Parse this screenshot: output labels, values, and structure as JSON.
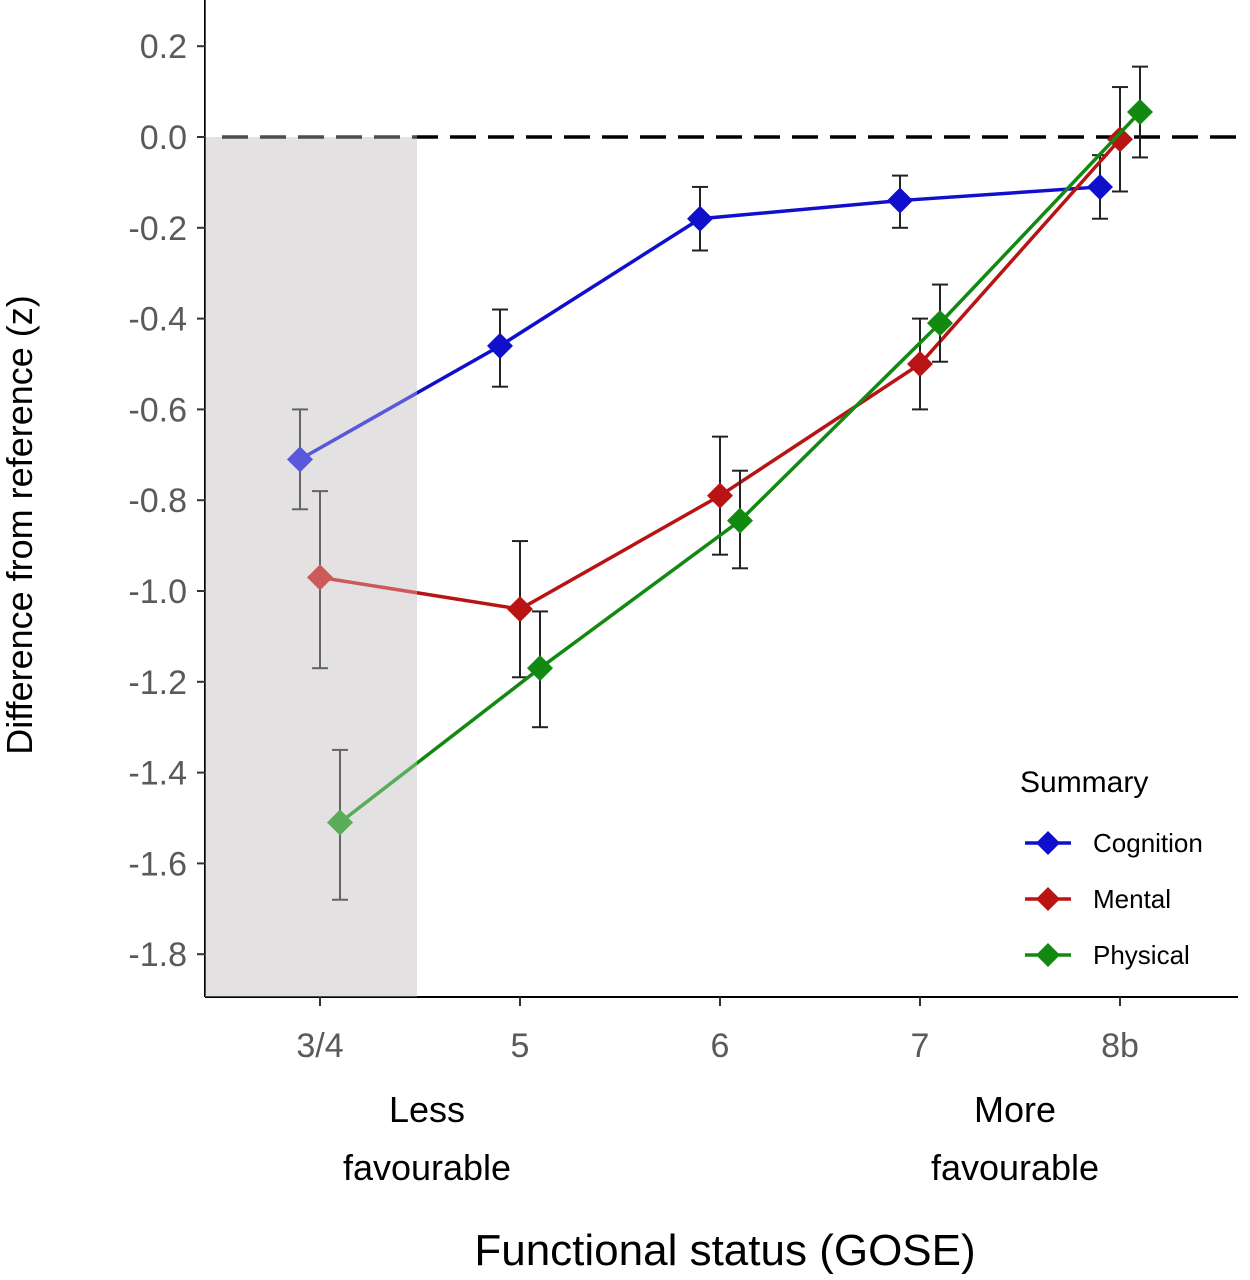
{
  "chart_data": {
    "type": "line",
    "xlabel": "Functional status (GOSE)",
    "ylabel": "Difference from reference (z)",
    "categories": [
      "3/4",
      "5",
      "6",
      "7",
      "8b"
    ],
    "ylim": [
      -1.9,
      0.3
    ],
    "yticks": [
      0.2,
      0.0,
      -0.2,
      -0.4,
      -0.6,
      -0.8,
      -1.0,
      -1.2,
      -1.4,
      -1.6,
      -1.8
    ],
    "ytick_labels": [
      "0.2",
      "0.0",
      "-0.2",
      "-0.4",
      "-0.6",
      "-0.8",
      "-1.0",
      "-1.2",
      "-1.4",
      "-1.6",
      "-1.8"
    ],
    "reference_line": 0.0,
    "shaded_category": "3/4",
    "annotations": {
      "left": [
        "Less",
        "favourable"
      ],
      "right": [
        "More",
        "favourable"
      ]
    },
    "legend": {
      "title": "Summary",
      "position": "bottom-right"
    },
    "series": [
      {
        "name": "Cognition",
        "color": "#1010cc",
        "values": [
          -0.71,
          -0.46,
          -0.18,
          -0.14,
          -0.11
        ],
        "err_low": [
          -0.82,
          -0.55,
          -0.25,
          -0.2,
          -0.18
        ],
        "err_high": [
          -0.6,
          -0.38,
          -0.11,
          -0.085,
          -0.04
        ]
      },
      {
        "name": "Mental",
        "color": "#b81414",
        "values": [
          -0.97,
          -1.04,
          -0.79,
          -0.5,
          -0.005
        ],
        "err_low": [
          -1.17,
          -1.19,
          -0.92,
          -0.6,
          -0.12
        ],
        "err_high": [
          -0.78,
          -0.89,
          -0.66,
          -0.4,
          0.11
        ]
      },
      {
        "name": "Physical",
        "color": "#128a12",
        "values": [
          -1.51,
          -1.17,
          -0.845,
          -0.41,
          0.055
        ],
        "err_low": [
          -1.68,
          -1.3,
          -0.95,
          -0.495,
          -0.045
        ],
        "err_high": [
          -1.35,
          -1.045,
          -0.735,
          -0.325,
          0.155
        ]
      }
    ],
    "grid": false
  }
}
